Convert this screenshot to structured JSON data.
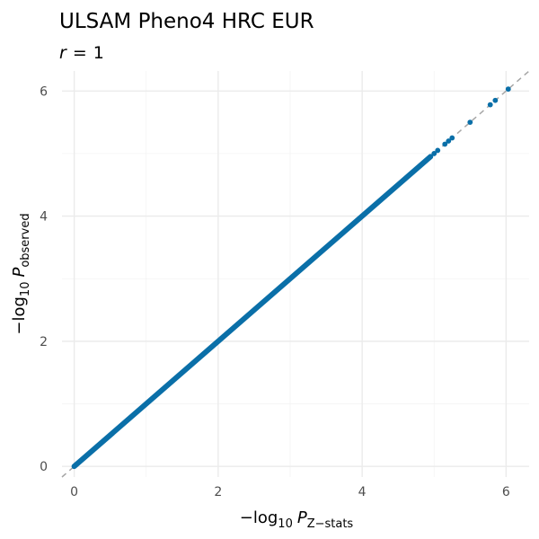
{
  "chart_data": {
    "type": "scatter",
    "title": "ULSAM Pheno4 HRC EUR",
    "subtitle": {
      "var": "r",
      "op": "=",
      "value": "1"
    },
    "xlabel": {
      "prefix": "−log",
      "sub": "10",
      "var": "P",
      "var_sub": "Z−stats"
    },
    "ylabel": {
      "prefix": "−log",
      "sub": "10",
      "var": "P",
      "var_sub": "observed"
    },
    "xlim": [
      -0.17,
      6.32
    ],
    "ylim": [
      -0.17,
      6.32
    ],
    "x_ticks": [
      0,
      2,
      4,
      6
    ],
    "y_ticks": [
      0,
      2,
      4,
      6
    ],
    "x_tick_labels": [
      "0",
      "2",
      "4",
      "6"
    ],
    "y_tick_labels": [
      "0",
      "2",
      "4",
      "6"
    ],
    "grid": true,
    "reference_line": {
      "slope": 1,
      "intercept": 0,
      "style": "dashed",
      "color": "#a6a6a6"
    },
    "point_color": "#0a6fa8",
    "dense_band": {
      "x": [
        0,
        4.95
      ],
      "y": [
        0,
        4.95
      ]
    },
    "series": [
      {
        "x": [
          5.0,
          5.05,
          5.15,
          5.2,
          5.25,
          5.5,
          5.78,
          5.85,
          6.03
        ],
        "y": [
          5.0,
          5.05,
          5.15,
          5.2,
          5.25,
          5.5,
          5.78,
          5.85,
          6.03
        ]
      }
    ]
  }
}
